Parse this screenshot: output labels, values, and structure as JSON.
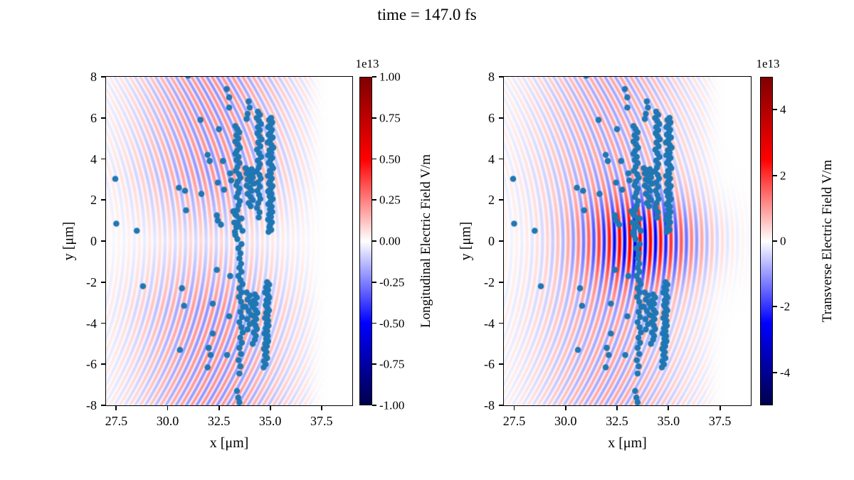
{
  "figure": {
    "title": "time = 147.0 fs",
    "background": "#ffffff"
  },
  "chart_data": {
    "type": "scatter",
    "overlay": "diverging field heatmap (seismic colormap) per panel",
    "panels": [
      {
        "id": "longitudinal",
        "xlabel": "x [μm]",
        "ylabel": "y [μm]",
        "xlim": [
          27.0,
          39.0
        ],
        "ylim": [
          -8.0,
          8.0
        ],
        "xticks": {
          "values": [
            27.5,
            30.0,
            32.5,
            35.0,
            37.5
          ],
          "labels": [
            "27.5",
            "30.0",
            "32.5",
            "35.0",
            "37.5"
          ]
        },
        "yticks": {
          "values": [
            8,
            6,
            4,
            2,
            0,
            -2,
            -4,
            -6,
            -8
          ],
          "labels": [
            "8",
            "6",
            "4",
            "2",
            "0",
            "-2",
            "-4",
            "-6",
            "-8"
          ]
        },
        "colorbar": {
          "label": "Longitudinal Electric Field V/m",
          "offset_text": "1e13",
          "vmin": -1.0,
          "vmax": 1.0,
          "cmap": "seismic",
          "ticks": {
            "values": [
              1.0,
              0.75,
              0.5,
              0.25,
              0.0,
              -0.25,
              -0.5,
              -0.75,
              -1.0
            ],
            "labels": [
              "1.00",
              "0.75",
              "0.50",
              "0.25",
              "0.00",
              "-0.25",
              "-0.50",
              "-0.75",
              "-1.00"
            ]
          }
        },
        "field_model": {
          "wavelength_um": 0.5,
          "curvature_um": 13,
          "arc_center_x": 32.2,
          "arc_sigma_x": 3.8,
          "right_edge_x": 36.6,
          "arc_amp": 0.22,
          "axial_min": 0.35,
          "pulse_amp": 0.0,
          "pulse_cx": 33.6,
          "pulse_sx": 2.8,
          "pulse_sy": 2.0
        }
      },
      {
        "id": "transverse",
        "xlabel": "x [μm]",
        "ylabel": "y [μm]",
        "xlim": [
          27.0,
          39.0
        ],
        "ylim": [
          -8.0,
          8.0
        ],
        "xticks": {
          "values": [
            27.5,
            30.0,
            32.5,
            35.0,
            37.5
          ],
          "labels": [
            "27.5",
            "30.0",
            "32.5",
            "35.0",
            "37.5"
          ]
        },
        "yticks": {
          "values": [
            8,
            6,
            4,
            2,
            0,
            -2,
            -4,
            -6,
            -8
          ],
          "labels": [
            "8",
            "6",
            "4",
            "2",
            "0",
            "-2",
            "-4",
            "-6",
            "-8"
          ]
        },
        "colorbar": {
          "label": "Transverse Electric Field V/m",
          "offset_text": "1e13",
          "vmin": -5.0,
          "vmax": 5.0,
          "cmap": "seismic",
          "ticks": {
            "values": [
              4,
              2,
              0,
              -2,
              -4
            ],
            "labels": [
              "4",
              "2",
              "0",
              "-2",
              "-4"
            ]
          }
        },
        "field_model": {
          "wavelength_um": 0.5,
          "curvature_um": 13,
          "arc_center_x": 32.2,
          "arc_sigma_x": 3.8,
          "right_edge_x": 36.6,
          "arc_amp": 0.18,
          "axial_min": 0.5,
          "pulse_amp": 0.5,
          "pulse_cx": 33.6,
          "pulse_sx": 2.8,
          "pulse_sy": 2.0
        }
      }
    ],
    "scatter": {
      "name": "macro-particles",
      "color": "#1f77b4",
      "marker_radius_px": 4.3,
      "points": [
        [
          35.05,
          6.0
        ],
        [
          34.95,
          5.9
        ],
        [
          35.1,
          5.78
        ],
        [
          35.0,
          5.65
        ],
        [
          34.9,
          5.55
        ],
        [
          35.08,
          5.42
        ],
        [
          35.02,
          5.3
        ],
        [
          34.92,
          5.18
        ],
        [
          35.12,
          5.05
        ],
        [
          35.0,
          4.92
        ],
        [
          34.88,
          4.8
        ],
        [
          35.06,
          4.68
        ],
        [
          35.15,
          4.55
        ],
        [
          34.97,
          4.42
        ],
        [
          35.05,
          4.3
        ],
        [
          34.9,
          4.18
        ],
        [
          35.1,
          4.05
        ],
        [
          35.0,
          3.92
        ],
        [
          34.93,
          3.8
        ],
        [
          35.07,
          3.68
        ],
        [
          35.14,
          3.55
        ],
        [
          34.98,
          3.42
        ],
        [
          35.03,
          3.3
        ],
        [
          34.89,
          3.18
        ],
        [
          35.08,
          3.05
        ],
        [
          35.0,
          2.92
        ],
        [
          34.94,
          2.8
        ],
        [
          35.11,
          2.68
        ],
        [
          35.02,
          2.55
        ],
        [
          34.9,
          2.42
        ],
        [
          35.06,
          2.3
        ],
        [
          34.97,
          2.18
        ],
        [
          35.12,
          2.05
        ],
        [
          35.01,
          1.92
        ],
        [
          34.91,
          1.8
        ],
        [
          35.07,
          1.68
        ],
        [
          34.99,
          1.55
        ],
        [
          35.1,
          1.42
        ],
        [
          34.95,
          1.3
        ],
        [
          35.04,
          1.18
        ],
        [
          34.9,
          1.05
        ],
        [
          35.08,
          0.92
        ],
        [
          35.0,
          0.8
        ],
        [
          34.96,
          0.68
        ],
        [
          35.05,
          0.55
        ],
        [
          34.92,
          0.45
        ],
        [
          34.85,
          -2.0
        ],
        [
          34.95,
          -2.12
        ],
        [
          34.8,
          -2.25
        ],
        [
          34.9,
          -2.38
        ],
        [
          34.75,
          -2.5
        ],
        [
          34.88,
          -2.62
        ],
        [
          34.95,
          -2.75
        ],
        [
          34.82,
          -2.88
        ],
        [
          34.9,
          -3.0
        ],
        [
          34.78,
          -3.12
        ],
        [
          34.86,
          -3.25
        ],
        [
          34.94,
          -3.38
        ],
        [
          34.8,
          -3.5
        ],
        [
          34.88,
          -3.62
        ],
        [
          34.75,
          -3.75
        ],
        [
          34.9,
          -3.88
        ],
        [
          34.83,
          -4.0
        ],
        [
          34.92,
          -4.12
        ],
        [
          34.78,
          -4.25
        ],
        [
          34.86,
          -4.38
        ],
        [
          34.72,
          -4.5
        ],
        [
          34.88,
          -4.62
        ],
        [
          34.8,
          -4.75
        ],
        [
          34.9,
          -4.88
        ],
        [
          34.76,
          -5.0
        ],
        [
          34.84,
          -5.12
        ],
        [
          34.7,
          -5.25
        ],
        [
          34.82,
          -5.4
        ],
        [
          34.75,
          -5.55
        ],
        [
          34.85,
          -5.7
        ],
        [
          34.7,
          -5.85
        ],
        [
          34.78,
          -6.0
        ],
        [
          34.68,
          -6.15
        ],
        [
          34.4,
          6.3
        ],
        [
          34.5,
          6.15
        ],
        [
          34.35,
          6.0
        ],
        [
          34.45,
          5.85
        ],
        [
          34.55,
          5.7
        ],
        [
          34.4,
          5.55
        ],
        [
          34.5,
          5.4
        ],
        [
          34.38,
          5.25
        ],
        [
          34.48,
          5.1
        ],
        [
          34.58,
          4.95
        ],
        [
          34.42,
          4.8
        ],
        [
          34.52,
          4.62
        ],
        [
          34.36,
          4.45
        ],
        [
          34.46,
          4.28
        ],
        [
          34.56,
          4.1
        ],
        [
          34.4,
          3.92
        ],
        [
          34.5,
          3.75
        ],
        [
          34.44,
          3.58
        ],
        [
          34.34,
          3.4
        ],
        [
          34.48,
          3.22
        ],
        [
          34.54,
          3.05
        ],
        [
          34.4,
          2.85
        ],
        [
          34.5,
          2.65
        ],
        [
          34.38,
          2.45
        ],
        [
          34.46,
          2.25
        ],
        [
          34.52,
          2.05
        ],
        [
          34.42,
          1.85
        ],
        [
          34.36,
          1.62
        ],
        [
          34.48,
          1.4
        ],
        [
          34.44,
          1.15
        ],
        [
          34.25,
          -2.6
        ],
        [
          34.35,
          -2.75
        ],
        [
          34.2,
          -2.9
        ],
        [
          34.3,
          -3.05
        ],
        [
          34.15,
          -3.2
        ],
        [
          34.28,
          -3.35
        ],
        [
          34.38,
          -3.5
        ],
        [
          34.22,
          -3.65
        ],
        [
          34.32,
          -3.8
        ],
        [
          34.18,
          -3.95
        ],
        [
          34.28,
          -4.1
        ],
        [
          34.35,
          -4.28
        ],
        [
          34.2,
          -4.45
        ],
        [
          34.3,
          -4.62
        ],
        [
          34.25,
          -4.8
        ],
        [
          34.15,
          -5.0
        ],
        [
          33.3,
          5.6
        ],
        [
          33.4,
          5.45
        ],
        [
          33.5,
          5.3
        ],
        [
          33.35,
          5.15
        ],
        [
          33.45,
          5.0
        ],
        [
          33.3,
          4.85
        ],
        [
          33.42,
          4.7
        ],
        [
          33.52,
          4.55
        ],
        [
          33.38,
          4.4
        ],
        [
          33.3,
          4.25
        ],
        [
          33.46,
          4.1
        ],
        [
          33.36,
          3.95
        ],
        [
          33.5,
          3.8
        ],
        [
          33.4,
          3.6
        ],
        [
          33.32,
          3.42
        ],
        [
          33.48,
          3.25
        ],
        [
          33.55,
          3.08
        ],
        [
          33.42,
          2.9
        ],
        [
          33.35,
          2.72
        ],
        [
          33.5,
          2.55
        ],
        [
          33.44,
          2.35
        ],
        [
          33.36,
          2.15
        ],
        [
          33.52,
          1.95
        ],
        [
          33.46,
          1.75
        ],
        [
          33.4,
          1.52
        ],
        [
          33.3,
          1.3
        ],
        [
          33.5,
          1.1
        ],
        [
          33.42,
          0.9
        ],
        [
          33.35,
          0.68
        ],
        [
          33.28,
          0.45
        ],
        [
          33.5,
          -1.3
        ],
        [
          33.6,
          -1.5
        ],
        [
          33.45,
          -1.7
        ],
        [
          33.55,
          -1.9
        ],
        [
          33.65,
          -2.1
        ],
        [
          33.5,
          -2.3
        ],
        [
          33.6,
          -2.5
        ],
        [
          33.48,
          -2.72
        ],
        [
          33.58,
          -2.95
        ],
        [
          33.68,
          -3.2
        ],
        [
          33.55,
          -3.45
        ],
        [
          33.62,
          -3.7
        ],
        [
          33.5,
          -3.95
        ],
        [
          33.6,
          -4.2
        ],
        [
          33.66,
          -4.45
        ],
        [
          33.54,
          -4.7
        ],
        [
          33.62,
          -4.95
        ],
        [
          33.5,
          -5.2
        ],
        [
          33.58,
          -5.5
        ],
        [
          33.46,
          -5.8
        ],
        [
          33.55,
          -6.1
        ],
        [
          33.5,
          -6.45
        ],
        [
          33.8,
          3.55
        ],
        [
          33.95,
          3.45
        ],
        [
          34.1,
          3.5
        ],
        [
          34.2,
          3.35
        ],
        [
          33.85,
          3.3
        ],
        [
          34.0,
          3.2
        ],
        [
          34.15,
          3.1
        ],
        [
          33.9,
          3.0
        ],
        [
          34.05,
          2.9
        ],
        [
          34.2,
          2.8
        ],
        [
          33.85,
          2.7
        ],
        [
          34.0,
          2.6
        ],
        [
          34.1,
          2.45
        ],
        [
          33.9,
          2.3
        ],
        [
          34.05,
          2.15
        ],
        [
          34.15,
          2.0
        ],
        [
          33.95,
          1.85
        ],
        [
          34.05,
          1.7
        ],
        [
          33.85,
          -2.5
        ],
        [
          34.0,
          -2.65
        ],
        [
          33.9,
          -2.85
        ],
        [
          34.05,
          -3.0
        ],
        [
          33.8,
          -3.2
        ],
        [
          33.95,
          -3.4
        ],
        [
          34.08,
          -3.6
        ],
        [
          33.88,
          -3.8
        ],
        [
          34.0,
          -4.05
        ],
        [
          33.9,
          -4.3
        ],
        [
          33.2,
          1.45
        ],
        [
          33.35,
          1.25
        ],
        [
          33.6,
          1.1
        ],
        [
          33.25,
          0.9
        ],
        [
          33.5,
          0.7
        ],
        [
          33.65,
          0.5
        ],
        [
          33.3,
          0.3
        ],
        [
          33.4,
          0.1
        ],
        [
          33.6,
          -0.15
        ],
        [
          33.45,
          -0.35
        ],
        [
          33.55,
          -0.6
        ],
        [
          33.5,
          -0.85
        ],
        [
          33.58,
          -1.1
        ],
        [
          31.6,
          5.9
        ],
        [
          32.5,
          5.45
        ],
        [
          31.95,
          4.2
        ],
        [
          32.05,
          3.9
        ],
        [
          32.7,
          3.9
        ],
        [
          31.65,
          2.3
        ],
        [
          30.55,
          2.6
        ],
        [
          30.85,
          2.45
        ],
        [
          32.45,
          2.85
        ],
        [
          30.9,
          1.5
        ],
        [
          32.4,
          1.25
        ],
        [
          32.45,
          1.0
        ],
        [
          32.6,
          0.8
        ],
        [
          32.75,
          2.5
        ],
        [
          33.05,
          3.3
        ],
        [
          33.1,
          2.95
        ],
        [
          32.4,
          -1.4
        ],
        [
          33.05,
          -1.7
        ],
        [
          28.8,
          -2.2
        ],
        [
          30.7,
          -2.3
        ],
        [
          30.8,
          -3.15
        ],
        [
          32.2,
          -3.05
        ],
        [
          33.0,
          -3.66
        ],
        [
          32.2,
          -4.5
        ],
        [
          30.6,
          -5.3
        ],
        [
          32.0,
          -5.2
        ],
        [
          32.1,
          -5.55
        ],
        [
          32.9,
          -5.55
        ],
        [
          31.95,
          -6.15
        ],
        [
          33.38,
          -7.3
        ],
        [
          33.44,
          -7.62
        ],
        [
          33.5,
          -7.85
        ],
        [
          31.0,
          8.05
        ],
        [
          32.88,
          7.4
        ],
        [
          33.0,
          7.0
        ],
        [
          33.0,
          6.5
        ],
        [
          33.95,
          6.8
        ],
        [
          34.0,
          6.5
        ],
        [
          33.9,
          6.2
        ],
        [
          33.85,
          5.95
        ],
        [
          27.45,
          3.03
        ],
        [
          27.5,
          0.85
        ],
        [
          28.5,
          0.5
        ]
      ]
    }
  }
}
